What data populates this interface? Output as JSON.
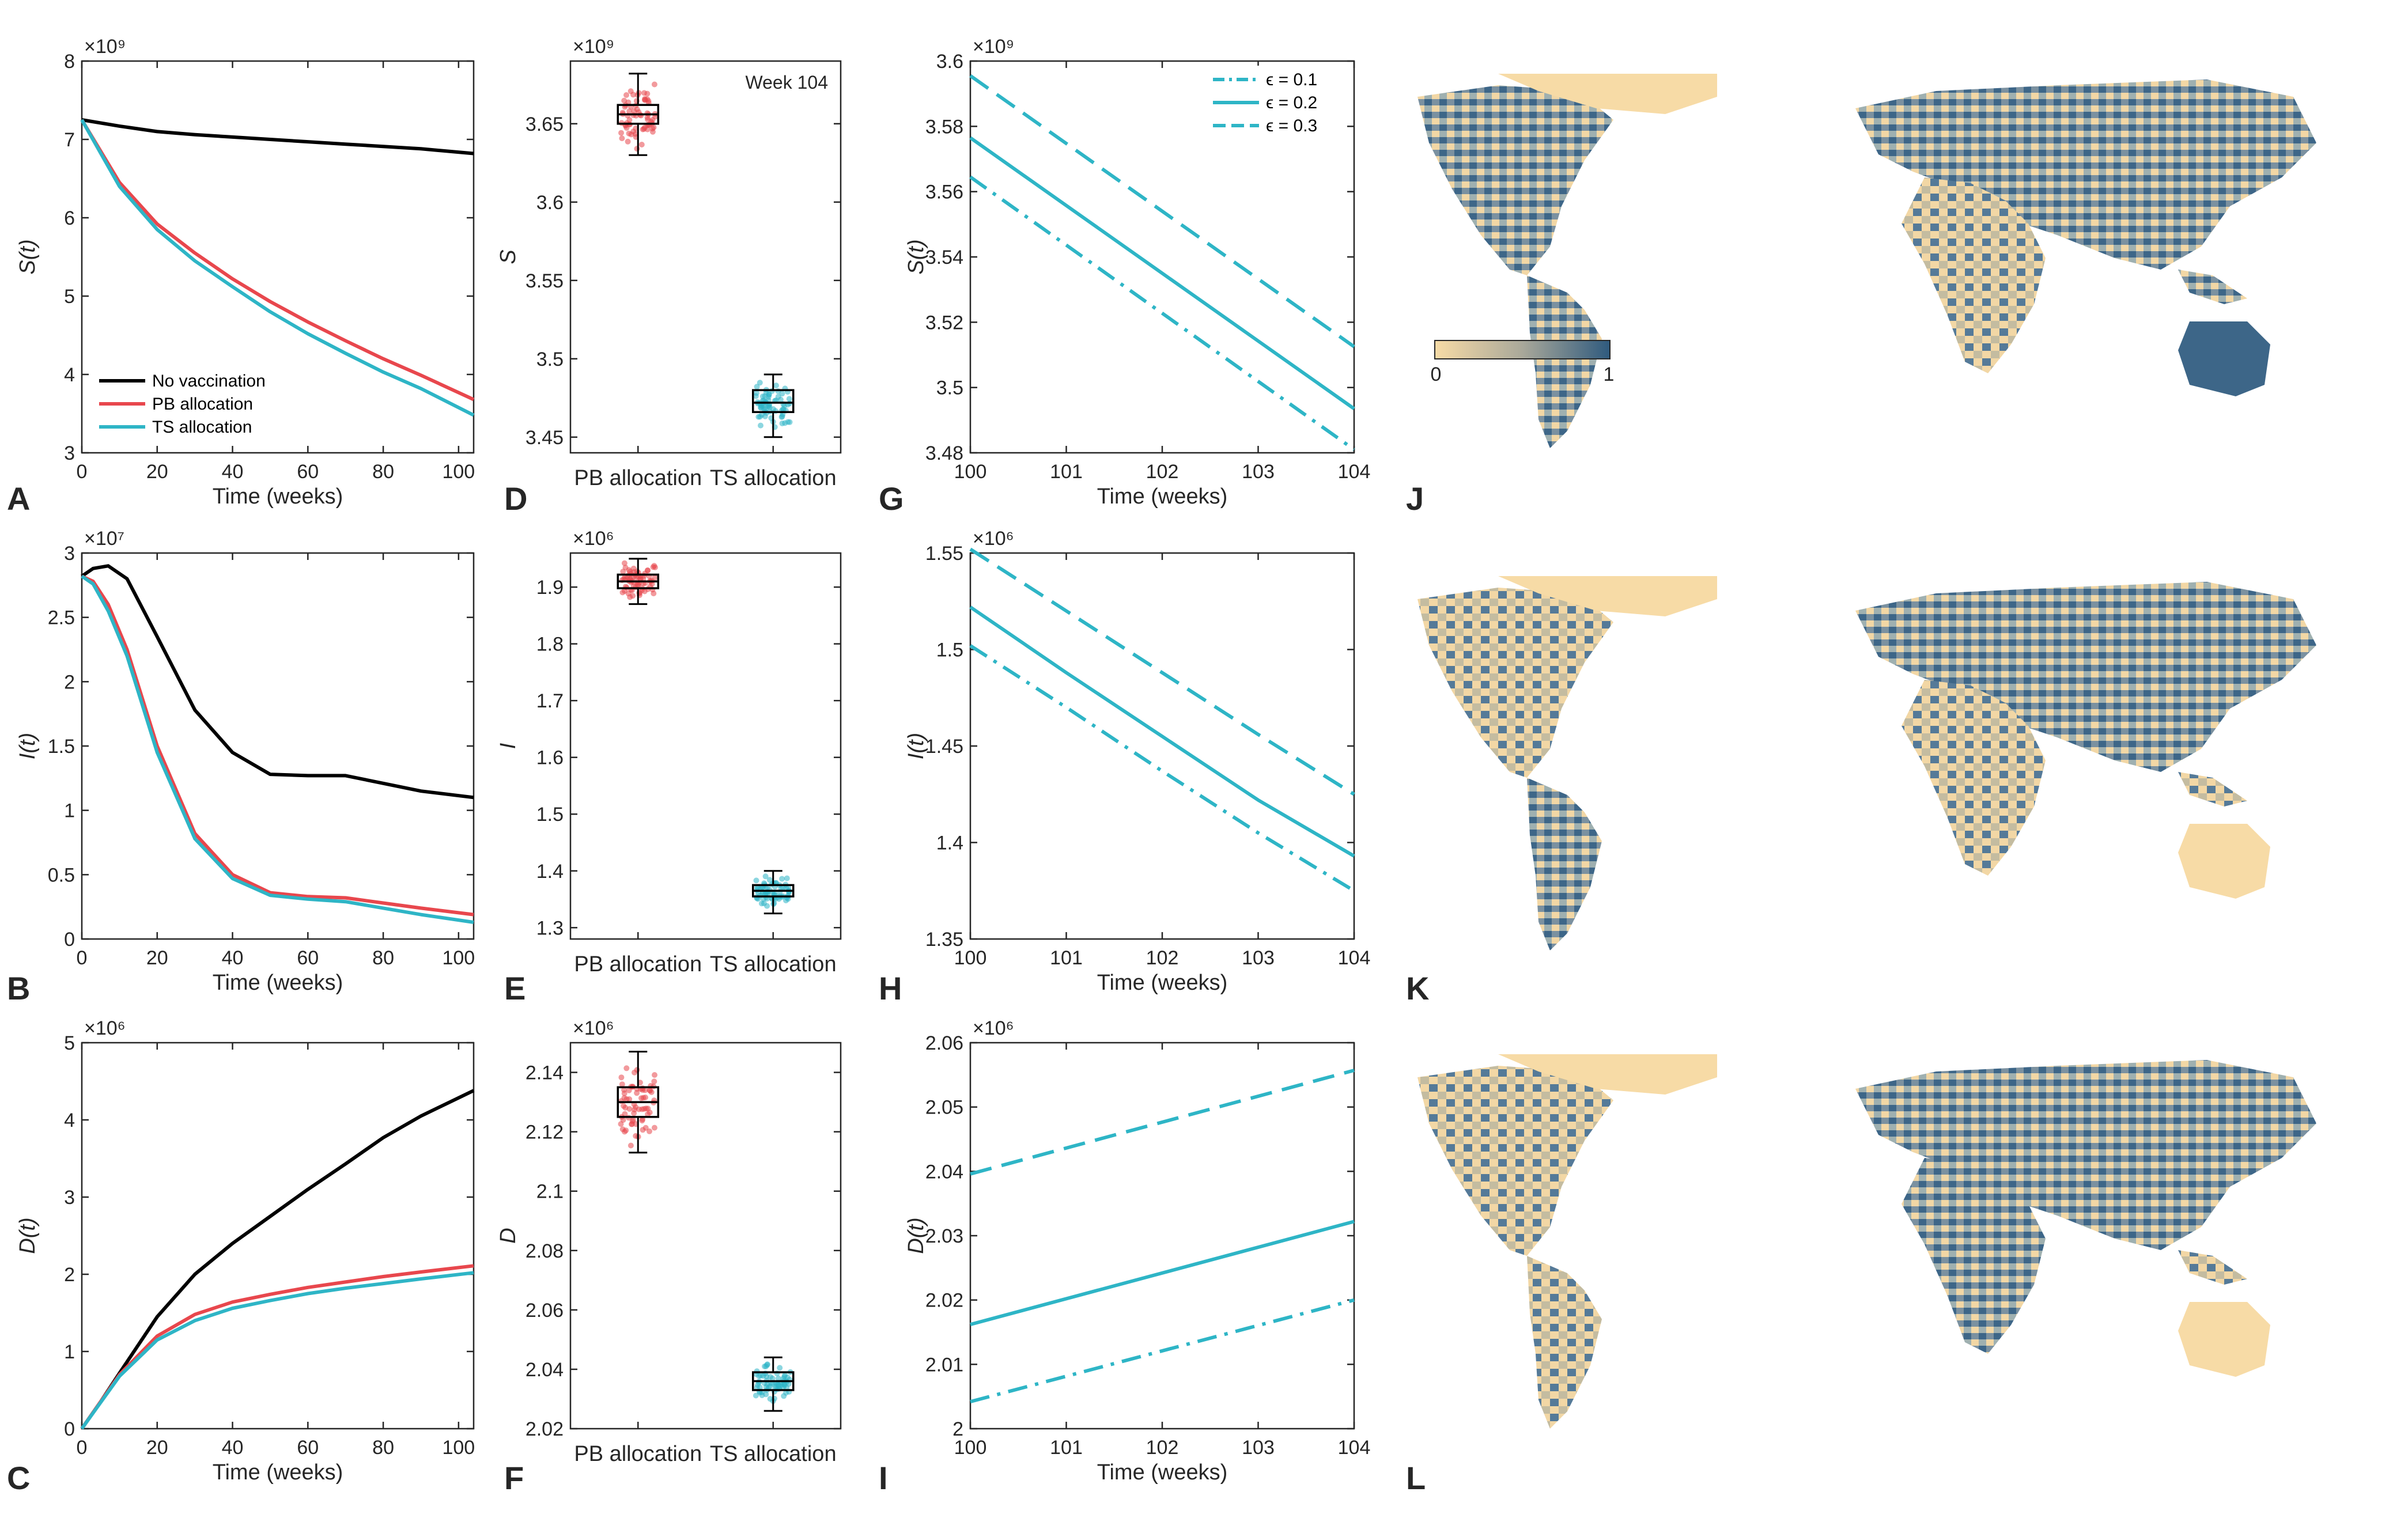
{
  "colors": {
    "no_vax": "#000000",
    "pb": "#e8474d",
    "ts": "#2eb5c6",
    "land_low": "#f7dba6",
    "land_high": "#2f5a7e"
  },
  "panels": [
    {
      "letter": "A"
    },
    {
      "letter": "B"
    },
    {
      "letter": "C"
    },
    {
      "letter": "D"
    },
    {
      "letter": "E"
    },
    {
      "letter": "F"
    },
    {
      "letter": "G"
    },
    {
      "letter": "H"
    },
    {
      "letter": "I"
    },
    {
      "letter": "J"
    },
    {
      "letter": "K"
    },
    {
      "letter": "L"
    }
  ],
  "colorbar": {
    "min_label": "0",
    "max_label": "1"
  },
  "chart_data": [
    {
      "id": "A",
      "type": "line",
      "xlabel": "Time (weeks)",
      "ylabel": "S(t)",
      "exponent": "×10⁹",
      "xlim": [
        0,
        104
      ],
      "ylim": [
        3,
        8
      ],
      "xticks": [
        0,
        20,
        40,
        60,
        80,
        100
      ],
      "yticks": [
        3,
        4,
        5,
        6,
        7,
        8
      ],
      "x": [
        0,
        10,
        20,
        30,
        40,
        50,
        60,
        70,
        80,
        90,
        104
      ],
      "series": [
        {
          "name": "No vaccination",
          "color": "#000000",
          "values": [
            7.25,
            7.17,
            7.1,
            7.06,
            7.03,
            7.0,
            6.97,
            6.94,
            6.91,
            6.88,
            6.82
          ]
        },
        {
          "name": "PB allocation",
          "color": "#e8474d",
          "values": [
            7.25,
            6.45,
            5.92,
            5.55,
            5.22,
            4.93,
            4.67,
            4.43,
            4.2,
            3.99,
            3.68
          ]
        },
        {
          "name": "TS allocation",
          "color": "#2eb5c6",
          "values": [
            7.25,
            6.4,
            5.85,
            5.45,
            5.12,
            4.8,
            4.52,
            4.27,
            4.03,
            3.82,
            3.48
          ]
        }
      ],
      "legend": [
        "No vaccination",
        "PB allocation",
        "TS allocation"
      ]
    },
    {
      "id": "B",
      "type": "line",
      "xlabel": "Time (weeks)",
      "ylabel": "I(t)",
      "exponent": "×10⁷",
      "xlim": [
        0,
        104
      ],
      "ylim": [
        0,
        3
      ],
      "xticks": [
        0,
        20,
        40,
        60,
        80,
        100
      ],
      "yticks": [
        0,
        0.5,
        1,
        1.5,
        2,
        2.5,
        3
      ],
      "x": [
        0,
        3,
        7,
        12,
        20,
        30,
        40,
        50,
        60,
        70,
        80,
        90,
        104
      ],
      "series": [
        {
          "name": "No vaccination",
          "color": "#000000",
          "values": [
            2.82,
            2.88,
            2.9,
            2.8,
            2.35,
            1.78,
            1.45,
            1.28,
            1.27,
            1.27,
            1.21,
            1.15,
            1.1
          ]
        },
        {
          "name": "PB allocation",
          "color": "#e8474d",
          "values": [
            2.82,
            2.78,
            2.6,
            2.25,
            1.5,
            0.82,
            0.5,
            0.36,
            0.33,
            0.32,
            0.28,
            0.24,
            0.19
          ]
        },
        {
          "name": "TS allocation",
          "color": "#2eb5c6",
          "values": [
            2.82,
            2.76,
            2.55,
            2.2,
            1.45,
            0.78,
            0.47,
            0.34,
            0.31,
            0.29,
            0.24,
            0.19,
            0.13
          ]
        }
      ]
    },
    {
      "id": "C",
      "type": "line",
      "xlabel": "Time (weeks)",
      "ylabel": "D(t)",
      "exponent": "×10⁶",
      "xlim": [
        0,
        104
      ],
      "ylim": [
        0,
        5
      ],
      "xticks": [
        0,
        20,
        40,
        60,
        80,
        100
      ],
      "yticks": [
        0,
        1,
        2,
        3,
        4,
        5
      ],
      "x": [
        0,
        5,
        10,
        20,
        30,
        40,
        50,
        60,
        70,
        80,
        90,
        104
      ],
      "series": [
        {
          "name": "No vaccination",
          "color": "#000000",
          "values": [
            0,
            0.35,
            0.72,
            1.45,
            2.0,
            2.4,
            2.75,
            3.1,
            3.43,
            3.77,
            4.05,
            4.38
          ]
        },
        {
          "name": "PB allocation",
          "color": "#e8474d",
          "values": [
            0,
            0.35,
            0.7,
            1.2,
            1.48,
            1.64,
            1.74,
            1.83,
            1.9,
            1.97,
            2.03,
            2.11
          ]
        },
        {
          "name": "TS allocation",
          "color": "#2eb5c6",
          "values": [
            0,
            0.34,
            0.68,
            1.15,
            1.4,
            1.56,
            1.66,
            1.75,
            1.82,
            1.88,
            1.94,
            2.02
          ]
        }
      ]
    },
    {
      "id": "D",
      "type": "box",
      "ylabel": "S",
      "exponent": "×10⁹",
      "ylim": [
        3.44,
        3.69
      ],
      "yticks": [
        3.45,
        3.5,
        3.55,
        3.6,
        3.65
      ],
      "annotation": "Week 104",
      "categories": [
        "PB allocation",
        "TS allocation"
      ],
      "boxes": [
        {
          "name": "PB allocation",
          "color": "#e8474d",
          "min": 3.63,
          "q1": 3.65,
          "median": 3.656,
          "q3": 3.662,
          "max": 3.682
        },
        {
          "name": "TS allocation",
          "color": "#2eb5c6",
          "min": 3.45,
          "q1": 3.466,
          "median": 3.472,
          "q3": 3.48,
          "max": 3.49
        }
      ]
    },
    {
      "id": "E",
      "type": "box",
      "ylabel": "I",
      "exponent": "×10⁶",
      "ylim": [
        1.28,
        1.96
      ],
      "yticks": [
        1.3,
        1.4,
        1.5,
        1.6,
        1.7,
        1.8,
        1.9
      ],
      "categories": [
        "PB allocation",
        "TS allocation"
      ],
      "boxes": [
        {
          "name": "PB allocation",
          "color": "#e8474d",
          "min": 1.87,
          "q1": 1.898,
          "median": 1.91,
          "q3": 1.922,
          "max": 1.95
        },
        {
          "name": "TS allocation",
          "color": "#2eb5c6",
          "min": 1.325,
          "q1": 1.355,
          "median": 1.365,
          "q3": 1.375,
          "max": 1.4
        }
      ]
    },
    {
      "id": "F",
      "type": "box",
      "ylabel": "D",
      "exponent": "×10⁶",
      "ylim": [
        2.02,
        2.15
      ],
      "yticks": [
        2.02,
        2.04,
        2.06,
        2.08,
        2.1,
        2.12,
        2.14
      ],
      "categories": [
        "PB allocation",
        "TS allocation"
      ],
      "boxes": [
        {
          "name": "PB allocation",
          "color": "#e8474d",
          "min": 2.113,
          "q1": 2.125,
          "median": 2.13,
          "q3": 2.135,
          "max": 2.147
        },
        {
          "name": "TS allocation",
          "color": "#2eb5c6",
          "min": 2.026,
          "q1": 2.033,
          "median": 2.036,
          "q3": 2.039,
          "max": 2.044
        }
      ]
    },
    {
      "id": "G",
      "type": "line",
      "xlabel": "Time (weeks)",
      "ylabel": "S(t)",
      "exponent": "×10⁹",
      "xlim": [
        100,
        104
      ],
      "ylim": [
        3.48,
        3.6
      ],
      "xticks": [
        100,
        101,
        102,
        103,
        104
      ],
      "yticks": [
        3.48,
        3.5,
        3.52,
        3.54,
        3.56,
        3.58,
        3.6
      ],
      "x": [
        100,
        104
      ],
      "series": [
        {
          "name": "ϵ = 0.1",
          "dash": "dashdot",
          "color": "#2eb5c6",
          "values": [
            3.5645,
            3.481
          ]
        },
        {
          "name": "ϵ = 0.2",
          "dash": "solid",
          "color": "#2eb5c6",
          "values": [
            3.5765,
            3.4935
          ]
        },
        {
          "name": "ϵ = 0.3",
          "dash": "dashed",
          "color": "#2eb5c6",
          "values": [
            3.5955,
            3.5125
          ]
        }
      ],
      "legend": [
        "ϵ = 0.1",
        "ϵ = 0.2",
        "ϵ = 0.3"
      ]
    },
    {
      "id": "H",
      "type": "line",
      "xlabel": "Time (weeks)",
      "ylabel": "I(t)",
      "exponent": "×10⁶",
      "xlim": [
        100,
        104
      ],
      "ylim": [
        1.35,
        1.55
      ],
      "xticks": [
        100,
        101,
        102,
        103,
        104
      ],
      "yticks": [
        1.35,
        1.4,
        1.45,
        1.5,
        1.55
      ],
      "x": [
        100,
        101,
        102,
        103,
        104
      ],
      "series": [
        {
          "name": "ϵ = 0.1",
          "dash": "dashdot",
          "color": "#2eb5c6",
          "values": [
            1.502,
            1.47,
            1.437,
            1.405,
            1.375
          ]
        },
        {
          "name": "ϵ = 0.2",
          "dash": "solid",
          "color": "#2eb5c6",
          "values": [
            1.522,
            1.488,
            1.455,
            1.422,
            1.393
          ]
        },
        {
          "name": "ϵ = 0.3",
          "dash": "dashed",
          "color": "#2eb5c6",
          "values": [
            1.552,
            1.52,
            1.488,
            1.456,
            1.425
          ]
        }
      ]
    },
    {
      "id": "I",
      "type": "line",
      "xlabel": "Time (weeks)",
      "ylabel": "D(t)",
      "exponent": "×10⁶",
      "xlim": [
        100,
        104
      ],
      "ylim": [
        2.0,
        2.06
      ],
      "xticks": [
        100,
        101,
        102,
        103,
        104
      ],
      "yticks": [
        2,
        2.01,
        2.02,
        2.03,
        2.04,
        2.05,
        2.06
      ],
      "x": [
        100,
        104
      ],
      "series": [
        {
          "name": "ϵ = 0.1",
          "dash": "dashdot",
          "color": "#2eb5c6",
          "values": [
            2.0042,
            2.02
          ]
        },
        {
          "name": "ϵ = 0.2",
          "dash": "solid",
          "color": "#2eb5c6",
          "values": [
            2.0162,
            2.0322
          ]
        },
        {
          "name": "ϵ = 0.3",
          "dash": "dashed",
          "color": "#2eb5c6",
          "values": [
            2.0396,
            2.0557
          ]
        }
      ]
    }
  ]
}
